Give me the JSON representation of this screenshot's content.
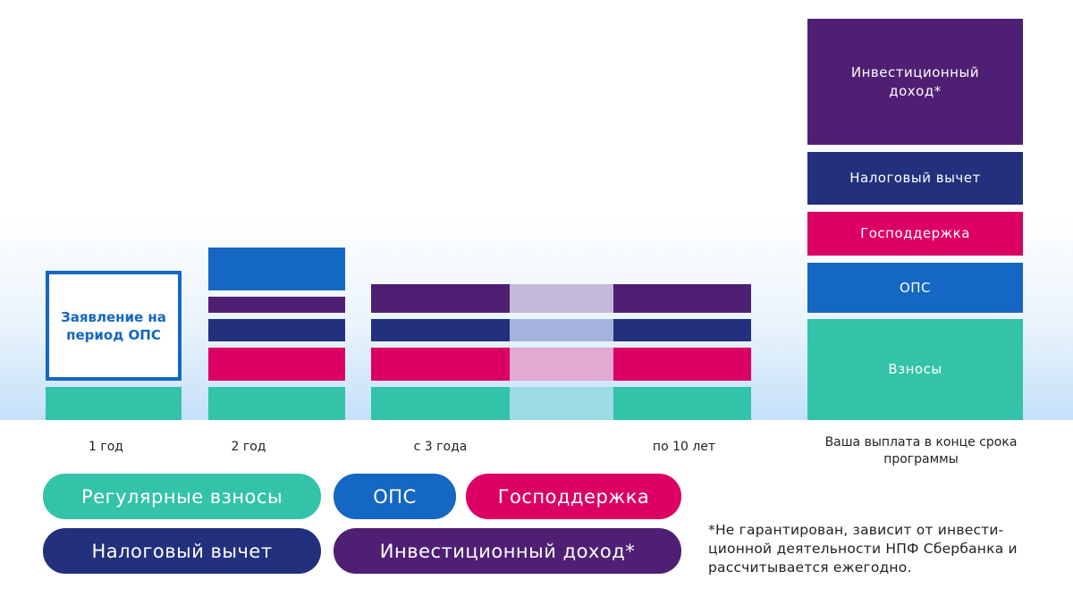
{
  "ops_box_text": "Заявление на период ОПС",
  "x_labels": {
    "year1": "1 год",
    "year2": "2 год",
    "from_year3": "с 3 года",
    "up_to_10": "по 10 лет",
    "payout": "Ваша выплата в конце срока программы"
  },
  "final_stack": {
    "investment": "Инвестиционный доход*",
    "tax": "Налоговый вычет",
    "state": "Господдержка",
    "ops": "ОПС",
    "contributions": "Взносы"
  },
  "legend": {
    "regular": "Регулярные взносы",
    "ops": "ОПС",
    "state": "Господдержка",
    "tax": "Налоговый вычет",
    "investment": "Инвестиционный доход*"
  },
  "footnote": "*Не гарантирован, зависит от инвести-ционной деятельности НПФ Сбербанка и рассчитывается ежегодно.",
  "colors": {
    "contributions": "#33c3a8",
    "ops": "#1467c2",
    "state": "#dc0064",
    "tax": "#22307d",
    "investment": "#4f1f74"
  }
}
